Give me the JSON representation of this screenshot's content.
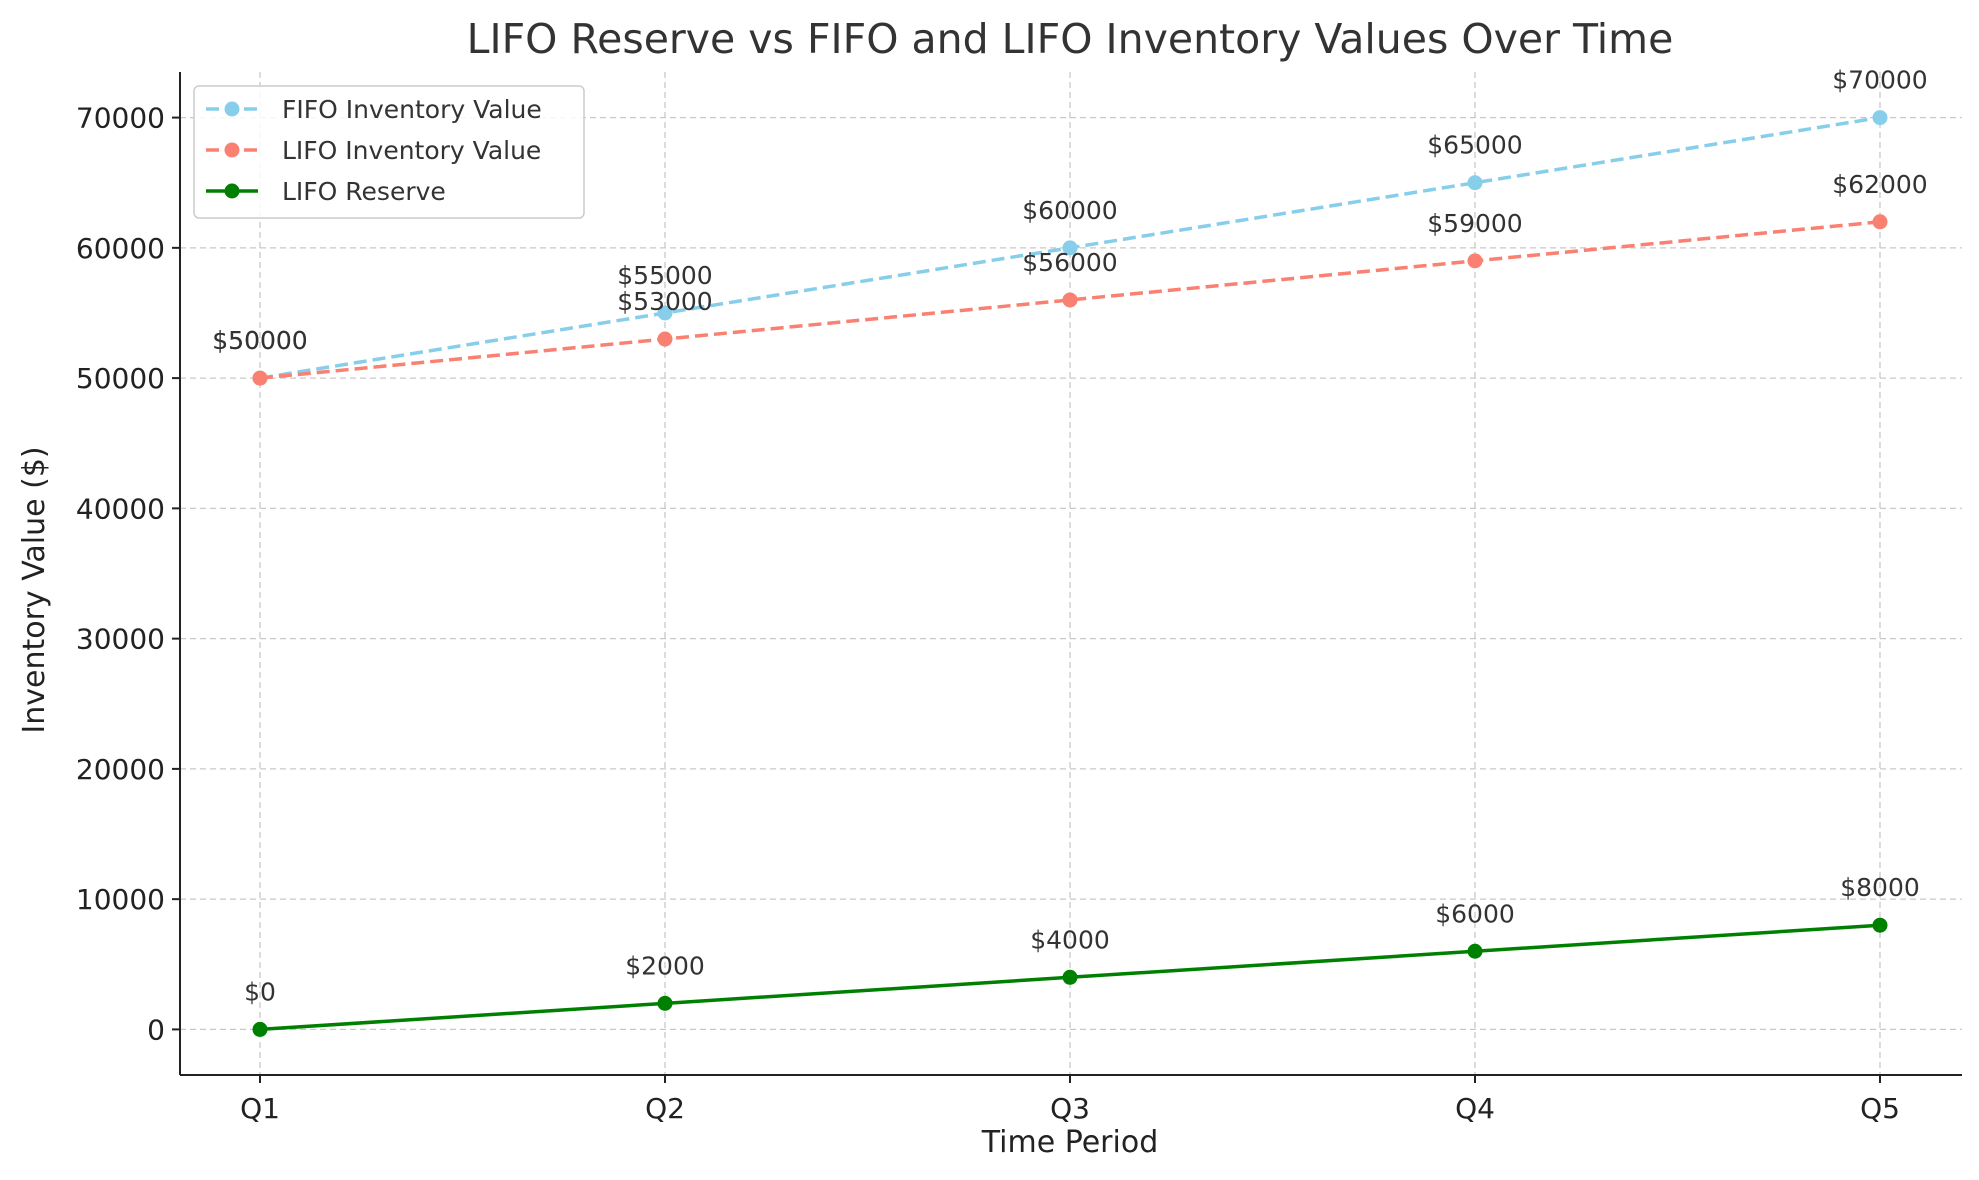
{
  "chart_data": {
    "type": "line",
    "title": "LIFO Reserve vs FIFO and LIFO Inventory Values Over Time",
    "xlabel": "Time Period",
    "ylabel": "Inventory Value ($)",
    "categories": [
      "Q1",
      "Q2",
      "Q3",
      "Q4",
      "Q5"
    ],
    "ylim": [
      -3500,
      73500
    ],
    "yticks": [
      0,
      10000,
      20000,
      30000,
      40000,
      50000,
      60000,
      70000
    ],
    "grid": true,
    "legend_position": "top-left",
    "series": [
      {
        "name": "FIFO Inventory Value",
        "values": [
          50000,
          55000,
          60000,
          65000,
          70000
        ],
        "labels": [
          "$50000",
          "$55000",
          "$60000",
          "$65000",
          "$70000"
        ],
        "color": "#87ceeb",
        "line_style": "dashed"
      },
      {
        "name": "LIFO Inventory Value",
        "values": [
          50000,
          53000,
          56000,
          59000,
          62000
        ],
        "labels": [
          "$50000",
          "$53000",
          "$56000",
          "$59000",
          "$62000"
        ],
        "color": "#fa8072",
        "line_style": "dashed"
      },
      {
        "name": "LIFO Reserve",
        "values": [
          0,
          2000,
          4000,
          6000,
          8000
        ],
        "labels": [
          "$0",
          "$2000",
          "$4000",
          "$6000",
          "$8000"
        ],
        "color": "#008000",
        "line_style": "solid"
      }
    ]
  }
}
